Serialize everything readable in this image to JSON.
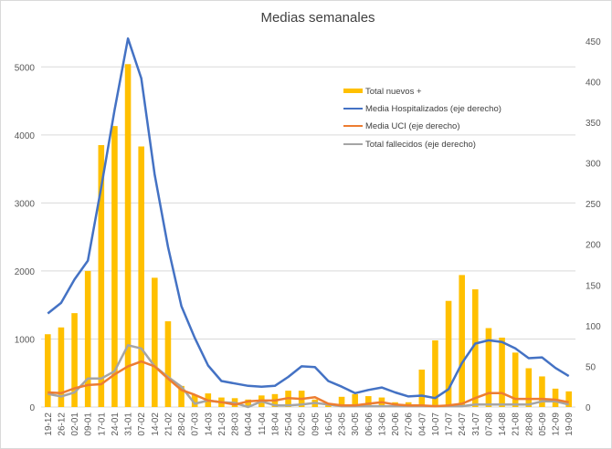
{
  "chart_data": {
    "type": "bar+line",
    "title": "Medias semanales",
    "categories": [
      "19-12",
      "26-12",
      "02-01",
      "09-01",
      "17-01",
      "24-01",
      "31-01",
      "07-02",
      "14-02",
      "21-02",
      "28-02",
      "07-03",
      "14-03",
      "21-03",
      "28-03",
      "04-04",
      "11-04",
      "18-04",
      "25-04",
      "02-05",
      "09-05",
      "16-05",
      "23-05",
      "30-05",
      "06-06",
      "13-06",
      "20-06",
      "27-06",
      "04-07",
      "10-07",
      "17-07",
      "24-07",
      "31-07",
      "07-08",
      "14-08",
      "21-08",
      "28-08",
      "05-09",
      "12-09",
      "19-09"
    ],
    "left_axis": {
      "ylim": [
        0,
        5500
      ],
      "ticks": [
        0,
        1000,
        2000,
        3000,
        4000,
        5000
      ]
    },
    "right_axis": {
      "ylim": [
        0,
        460
      ],
      "ticks": [
        0,
        50,
        100,
        150,
        200,
        250,
        300,
        350,
        400,
        450
      ]
    },
    "grid": true,
    "legend_position": "upper-right inside",
    "series": [
      {
        "name": "Total nuevos +",
        "kind": "bar",
        "axis": "left",
        "color": "#FFC000",
        "values": [
          1070,
          1170,
          1380,
          2000,
          3850,
          4130,
          5040,
          3830,
          1900,
          1260,
          310,
          180,
          200,
          140,
          130,
          110,
          170,
          190,
          240,
          240,
          110,
          60,
          150,
          190,
          160,
          140,
          70,
          70,
          550,
          980,
          1560,
          1940,
          1730,
          1160,
          1020,
          800,
          570,
          450,
          270,
          230
        ]
      },
      {
        "name": "Media Hospitalizados (eje derecho)",
        "kind": "line",
        "axis": "right",
        "color": "#4472C4",
        "values": [
          115,
          128,
          157,
          180,
          270,
          365,
          453,
          404,
          286,
          197,
          124,
          85,
          51,
          32,
          29,
          26,
          25,
          26,
          37,
          50,
          49,
          32,
          25,
          17,
          21,
          24,
          18,
          13,
          14,
          11,
          22,
          54,
          78,
          82,
          80,
          72,
          60,
          61,
          48,
          38
        ]
      },
      {
        "name": "Media UCI (eje derecho)",
        "kind": "line",
        "axis": "right",
        "color": "#ED7D31",
        "values": [
          18,
          17,
          23,
          27,
          28,
          40,
          50,
          56,
          50,
          35,
          21,
          15,
          8,
          6,
          3,
          7,
          8,
          8,
          11,
          10,
          12,
          4,
          2,
          2,
          4,
          6,
          3,
          2,
          2,
          1,
          2,
          4,
          11,
          17,
          17,
          10,
          10,
          10,
          9,
          6
        ]
      },
      {
        "name": "Total fallecidos (eje derecho)",
        "kind": "line",
        "axis": "right",
        "color": "#A5A5A5",
        "values": [
          16,
          13,
          18,
          35,
          35,
          44,
          76,
          72,
          50,
          37,
          25,
          4,
          8,
          6,
          5,
          0,
          7,
          2,
          2,
          3,
          5,
          3,
          1,
          1,
          1,
          1,
          1,
          1,
          1,
          1,
          1,
          1,
          3,
          3,
          3,
          3,
          3,
          7,
          7,
          3
        ]
      }
    ]
  }
}
